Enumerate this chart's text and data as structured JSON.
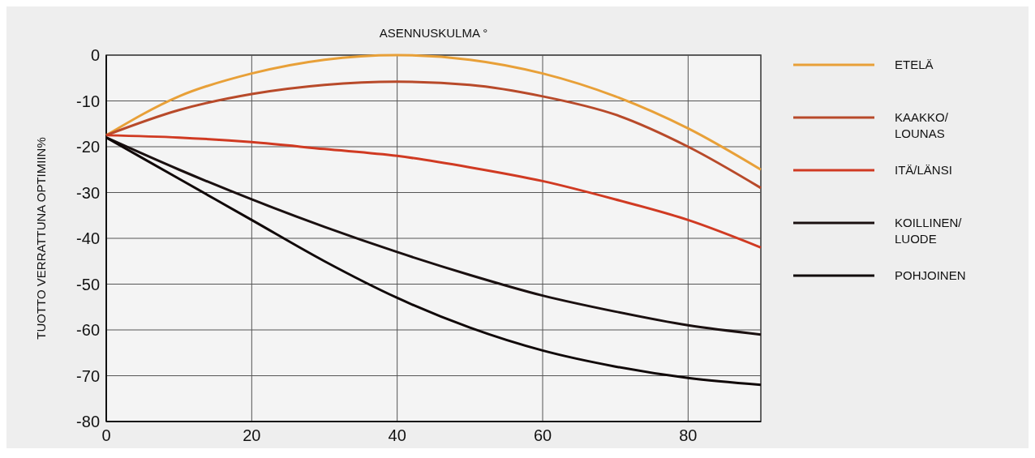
{
  "chart_data": {
    "type": "line",
    "xlabel": "ASENNUSKULMA °",
    "ylabel": "TUOTTO VERRATTUNA OPTIMIIN%",
    "x": [
      0,
      10,
      20,
      30,
      40,
      50,
      60,
      70,
      80,
      90
    ],
    "xlim": [
      0,
      90
    ],
    "xticks": [
      0,
      20,
      40,
      60,
      80
    ],
    "ylim": [
      -80,
      0
    ],
    "yticks": [
      -80,
      -70,
      -60,
      -50,
      -40,
      -30,
      -20,
      -10,
      0
    ],
    "grid": true,
    "legend": "right",
    "marker": "none",
    "line_style": "solid",
    "series": [
      {
        "name": "ETELÄ",
        "color": "#e8a038",
        "values": [
          -17.5,
          -9,
          -4,
          -1,
          0,
          -1,
          -4,
          -9,
          -16,
          -25
        ]
      },
      {
        "name": "KAAKKO/LOUNAS",
        "color": "#b84a2a",
        "values": [
          -17.5,
          -12,
          -8.5,
          -6.5,
          -5.8,
          -6.5,
          -9,
          -13,
          -20,
          -29
        ]
      },
      {
        "name": "ITÄ/LÄNSI",
        "color": "#d03a22",
        "values": [
          -17.5,
          -18,
          -19,
          -20.5,
          -22,
          -24.5,
          -27.5,
          -31.5,
          -36,
          -42
        ]
      },
      {
        "name": "KOILLINEN/LUODE",
        "color": "#1a1010",
        "values": [
          -18,
          -25,
          -31.5,
          -37.5,
          -43,
          -48,
          -52.5,
          -56,
          -59,
          -61
        ]
      },
      {
        "name": "POHJOINEN",
        "color": "#100808",
        "values": [
          -18,
          -27,
          -36,
          -45,
          -53,
          -59.5,
          -64.5,
          -68,
          -70.5,
          -72
        ]
      }
    ]
  }
}
